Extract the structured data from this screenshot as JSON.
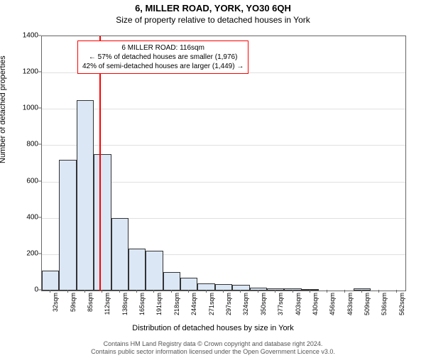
{
  "title": "6, MILLER ROAD, YORK, YO30 6QH",
  "subtitle": "Size of property relative to detached houses in York",
  "chart": {
    "type": "histogram",
    "ylabel": "Number of detached properties",
    "xlabel": "Distribution of detached houses by size in York",
    "ylim": [
      0,
      1400
    ],
    "ytick_step": 200,
    "yticks": [
      0,
      200,
      400,
      600,
      800,
      1000,
      1200,
      1400
    ],
    "xtick_labels": [
      "32sqm",
      "59sqm",
      "85sqm",
      "112sqm",
      "138sqm",
      "165sqm",
      "191sqm",
      "218sqm",
      "244sqm",
      "271sqm",
      "297sqm",
      "324sqm",
      "350sqm",
      "377sqm",
      "403sqm",
      "430sqm",
      "456sqm",
      "483sqm",
      "509sqm",
      "536sqm",
      "562sqm"
    ],
    "bars": [
      110,
      720,
      1050,
      750,
      400,
      230,
      220,
      100,
      70,
      40,
      35,
      30,
      15,
      12,
      10,
      8,
      0,
      0,
      10,
      0,
      0
    ],
    "bar_fill": "#dbe7f5",
    "bar_stroke": "#333333",
    "grid_color": "#e0e0e0",
    "border_color": "#666666",
    "background_color": "#ffffff",
    "marker": {
      "value": 116,
      "xmin": 32,
      "xmax": 562,
      "color": "#ff0000",
      "line_width": 2
    },
    "annotation": {
      "line1": "6 MILLER ROAD: 116sqm",
      "line2": "← 57% of detached houses are smaller (1,976)",
      "line3": "42% of semi-detached houses are larger (1,449) →",
      "border_color": "#ff0000",
      "background": "#ffffff",
      "fontsize": 10
    },
    "title_fontsize": 13,
    "subtitle_fontsize": 12,
    "label_fontsize": 11,
    "tick_fontsize": 10
  },
  "footer": {
    "line1": "Contains HM Land Registry data © Crown copyright and database right 2024.",
    "line2": "Contains public sector information licensed under the Open Government Licence v3.0."
  }
}
